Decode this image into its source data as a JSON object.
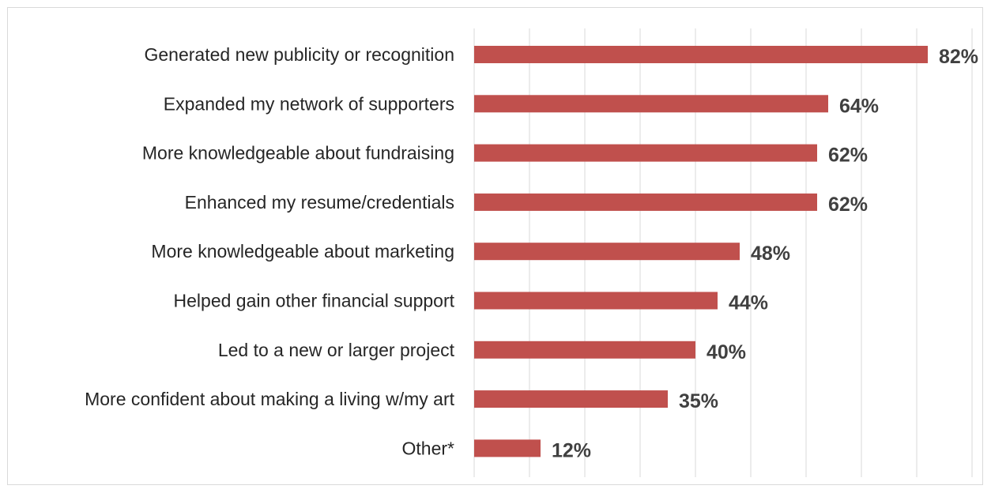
{
  "chart_data": {
    "type": "bar",
    "orientation": "horizontal",
    "categories": [
      "Generated new publicity or recognition",
      "Expanded my network of supporters",
      "More knowledgeable about fundraising",
      "Enhanced my resume/credentials",
      "More knowledgeable about marketing",
      "Helped gain other financial support",
      "Led to a new or larger project",
      "More confident about making a living w/my art",
      "Other*"
    ],
    "values": [
      82,
      64,
      62,
      62,
      48,
      44,
      40,
      35,
      12
    ],
    "value_labels": [
      "82%",
      "64%",
      "62%",
      "62%",
      "48%",
      "44%",
      "40%",
      "35%",
      "12%"
    ],
    "xlim": [
      0,
      90
    ],
    "grid": true,
    "legend": "none",
    "bar_color": "#c0504d"
  }
}
